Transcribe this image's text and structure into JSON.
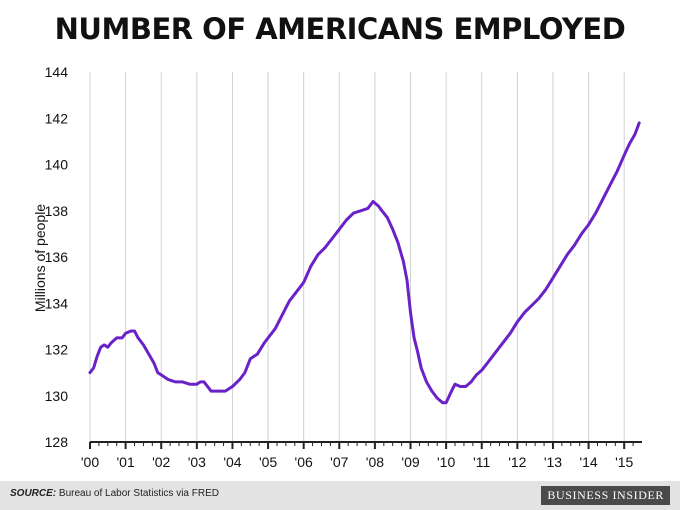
{
  "title": "NUMBER OF AMERICANS EMPLOYED",
  "footer": {
    "source_label": "SOURCE:",
    "source_text": "Bureau of Labor Statistics via FRED",
    "brand": "BUSINESS INSIDER"
  },
  "colors": {
    "line": "#6a22c8",
    "axis": "#222222",
    "grid": "#d0d0d0",
    "footer_bg": "#e3e3e3"
  },
  "chart_data": {
    "type": "line",
    "title": "NUMBER OF AMERICANS EMPLOYED",
    "xlabel": "",
    "ylabel": "Millions of people",
    "ylim": [
      128,
      144
    ],
    "yticks": [
      128,
      130,
      132,
      134,
      136,
      138,
      140,
      142,
      144
    ],
    "xlim": [
      2000,
      2015.5
    ],
    "xticks": [
      2000,
      2001,
      2002,
      2003,
      2004,
      2005,
      2006,
      2007,
      2008,
      2009,
      2010,
      2011,
      2012,
      2013,
      2014,
      2015
    ],
    "xticklabels": [
      "'00",
      "'01",
      "'02",
      "'03",
      "'04",
      "'05",
      "'06",
      "'07",
      "'08",
      "'09",
      "'10",
      "'11",
      "'12",
      "'13",
      "'14",
      "'15"
    ],
    "grid": "vertical",
    "series": [
      {
        "name": "",
        "x": [
          2000.0,
          2000.1,
          2000.2,
          2000.3,
          2000.4,
          2000.5,
          2000.6,
          2000.75,
          2000.9,
          2001.0,
          2001.15,
          2001.25,
          2001.35,
          2001.5,
          2001.65,
          2001.8,
          2001.9,
          2002.0,
          2002.2,
          2002.4,
          2002.6,
          2002.8,
          2003.0,
          2003.1,
          2003.2,
          2003.4,
          2003.6,
          2003.8,
          2004.0,
          2004.2,
          2004.35,
          2004.5,
          2004.7,
          2004.9,
          2005.0,
          2005.2,
          2005.4,
          2005.6,
          2005.8,
          2006.0,
          2006.2,
          2006.4,
          2006.6,
          2006.8,
          2007.0,
          2007.2,
          2007.4,
          2007.6,
          2007.8,
          2007.95,
          2008.1,
          2008.2,
          2008.35,
          2008.5,
          2008.65,
          2008.8,
          2008.9,
          2009.0,
          2009.1,
          2009.2,
          2009.3,
          2009.45,
          2009.6,
          2009.75,
          2009.9,
          2010.0,
          2010.15,
          2010.25,
          2010.4,
          2010.55,
          2010.7,
          2010.85,
          2011.0,
          2011.2,
          2011.4,
          2011.6,
          2011.8,
          2012.0,
          2012.2,
          2012.4,
          2012.6,
          2012.8,
          2013.0,
          2013.2,
          2013.4,
          2013.6,
          2013.8,
          2014.0,
          2014.2,
          2014.4,
          2014.6,
          2014.8,
          2015.0,
          2015.15,
          2015.3,
          2015.42
        ],
        "values": [
          131.0,
          131.2,
          131.7,
          132.1,
          132.2,
          132.1,
          132.3,
          132.5,
          132.5,
          132.7,
          132.8,
          132.8,
          132.5,
          132.2,
          131.8,
          131.4,
          131.0,
          130.9,
          130.7,
          130.6,
          130.6,
          130.5,
          130.5,
          130.6,
          130.6,
          130.2,
          130.2,
          130.2,
          130.4,
          130.7,
          131.0,
          131.6,
          131.8,
          132.3,
          132.5,
          132.9,
          133.5,
          134.1,
          134.5,
          134.9,
          135.6,
          136.1,
          136.4,
          136.8,
          137.2,
          137.6,
          137.9,
          138.0,
          138.1,
          138.4,
          138.2,
          138.0,
          137.7,
          137.2,
          136.6,
          135.8,
          135.0,
          133.6,
          132.5,
          131.9,
          131.2,
          130.6,
          130.2,
          129.9,
          129.7,
          129.7,
          130.2,
          130.5,
          130.4,
          130.4,
          130.6,
          130.9,
          131.1,
          131.5,
          131.9,
          132.3,
          132.7,
          133.2,
          133.6,
          133.9,
          134.2,
          134.6,
          135.1,
          135.6,
          136.1,
          136.5,
          137.0,
          137.4,
          137.9,
          138.5,
          139.1,
          139.7,
          140.4,
          140.9,
          141.3,
          141.8
        ]
      }
    ]
  }
}
